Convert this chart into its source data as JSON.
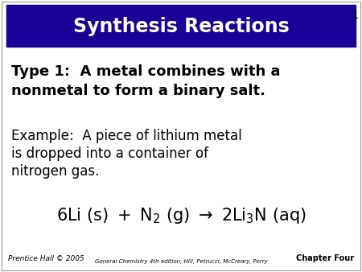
{
  "title": "Synthesis Reactions",
  "title_bg_color": "#1a0096",
  "title_text_color": "#ffffff",
  "slide_bg_color": "#ffffff",
  "type1_text_line1": "Type 1:  A metal combines with a",
  "type1_text_line2": "nonmetal to form a binary salt.",
  "example_line1": "Example:  A piece of lithium metal",
  "example_line2": "is dropped into a container of",
  "example_line3": "nitrogen gas.",
  "footer_left": "Prentice Hall © 2005",
  "footer_center": "General Chemistry 4th edition, Hill, Petrucci, McCreary, Perry",
  "footer_right": "Chapter Four",
  "slide_number": "1"
}
